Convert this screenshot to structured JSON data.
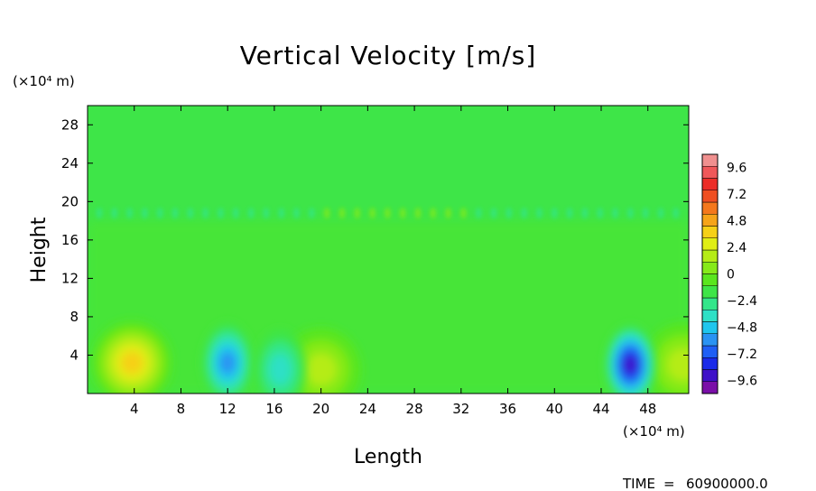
{
  "chart_data": {
    "type": "heatmap",
    "title": "Vertical Velocity [m/s]",
    "xlabel": "Length",
    "ylabel": "Height",
    "x_unit": "(×10⁴ m)",
    "y_unit": "(×10⁴ m)",
    "xlim": [
      0,
      51.5
    ],
    "ylim": [
      0,
      30
    ],
    "x_ticks": [
      4,
      8,
      12,
      16,
      20,
      24,
      28,
      32,
      36,
      40,
      44,
      48
    ],
    "y_ticks": [
      4,
      8,
      12,
      16,
      20,
      24,
      28
    ],
    "x_tick_labels": [
      "4",
      "8",
      "12",
      "16",
      "20",
      "24",
      "28",
      "32",
      "36",
      "40",
      "44",
      "48"
    ],
    "y_tick_labels": [
      "4",
      "8",
      "12",
      "16",
      "20",
      "24",
      "28"
    ],
    "colorbar": {
      "min": -10.8,
      "max": 10.8,
      "step": 1.2,
      "labels": [
        "9.6",
        "7.2",
        "4.8",
        "2.4",
        "0",
        "−2.4",
        "−4.8",
        "−7.2",
        "−9.6"
      ],
      "colors": [
        "#7a0fa8",
        "#3f11c8",
        "#1a2ae8",
        "#1f5ff5",
        "#2a93f3",
        "#1fc6ee",
        "#2fe0c6",
        "#33e68a",
        "#3ee548",
        "#5ae61e",
        "#86ea19",
        "#b5ec16",
        "#e0ee14",
        "#f6d016",
        "#f6a419",
        "#f4781c",
        "#ef4f22",
        "#ec2d28",
        "#f0585a",
        "#f0908f"
      ]
    },
    "features": [
      {
        "label": "updraft",
        "x": 3.8,
        "y": 3.2,
        "value": 5.6
      },
      {
        "label": "updraft",
        "x": 20.0,
        "y": 2.5,
        "value": 3.0
      },
      {
        "label": "updraft",
        "x": 51.0,
        "y": 3.0,
        "value": 2.8
      },
      {
        "label": "downdraft",
        "x": 12.0,
        "y": 3.2,
        "value": -6.0
      },
      {
        "label": "downdraft",
        "x": 46.5,
        "y": 3.0,
        "value": -9.0
      },
      {
        "label": "downdraft",
        "x": 16.5,
        "y": 2.5,
        "value": -3.0
      }
    ],
    "annotations": {
      "time_label": "TIME",
      "time_value": "60900000.0"
    }
  }
}
